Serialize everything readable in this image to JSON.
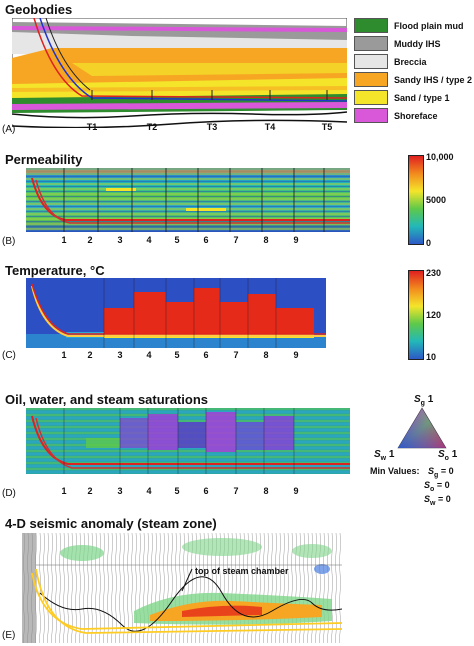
{
  "panelA": {
    "title": "Geobodies",
    "label": "(A)",
    "wells": [
      "T1",
      "T2",
      "T3",
      "T4",
      "T5"
    ],
    "legend": [
      {
        "label": "Flood plain mud",
        "color": "#2e8b2e"
      },
      {
        "label": "Muddy IHS",
        "color": "#9a9a9a"
      },
      {
        "label": "Breccia",
        "color": "#e6e6e6"
      },
      {
        "label": "Sandy IHS / type 2",
        "color": "#f6a623"
      },
      {
        "label": "Sand / type 1",
        "color": "#f4e52a"
      },
      {
        "label": "Shoreface",
        "color": "#d957d9"
      }
    ]
  },
  "panelB": {
    "title": "Permeability",
    "label": "(B)",
    "columns": [
      "1",
      "2",
      "3",
      "4",
      "5",
      "6",
      "7",
      "8",
      "9"
    ],
    "scale": {
      "max": "10,000",
      "mid": "5000",
      "min": "0"
    }
  },
  "panelC": {
    "title": "Temperature, °C",
    "label": "(C)",
    "columns": [
      "1",
      "2",
      "3",
      "4",
      "5",
      "6",
      "7",
      "8",
      "9"
    ],
    "scale": {
      "max": "230",
      "mid": "120",
      "min": "10"
    }
  },
  "panelD": {
    "title": "Oil, water, and steam saturations",
    "label": "(D)",
    "columns": [
      "1",
      "2",
      "3",
      "4",
      "5",
      "6",
      "7",
      "8",
      "9"
    ],
    "ternary": {
      "top": "1",
      "left": "1",
      "right": "1"
    },
    "min_values": {
      "heading": "Min Values:",
      "sg": "= 0",
      "so": "= 0",
      "sw": "= 0"
    }
  },
  "panelE": {
    "title": "4-D seismic anomaly (steam zone)",
    "label": "(E)",
    "annotation": "top of steam chamber"
  }
}
